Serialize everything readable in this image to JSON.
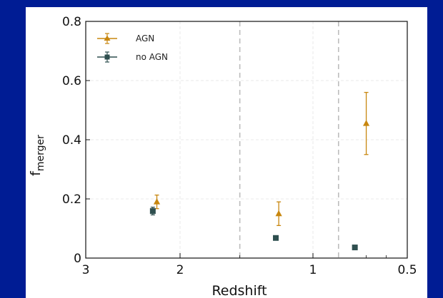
{
  "chart_data": {
    "type": "scatter",
    "xlabel": "Redshift",
    "ylabel_main": "f",
    "ylabel_sub": "merger",
    "x_scale": "log (1+z), reversed",
    "xlim": [
      3,
      0.5
    ],
    "ylim": [
      0,
      0.8
    ],
    "x_ticks": [
      {
        "value": 3,
        "label": "3"
      },
      {
        "value": 2,
        "label": "2"
      },
      {
        "value": 1,
        "label": "1"
      },
      {
        "value": 0.5,
        "label": "0.5"
      }
    ],
    "x_minor_ticks": [
      1.5,
      0.7,
      0.6
    ],
    "y_ticks": [
      {
        "value": 0,
        "label": "0"
      },
      {
        "value": 0.2,
        "label": "0.2"
      },
      {
        "value": 0.4,
        "label": "0.4"
      },
      {
        "value": 0.6,
        "label": "0.6"
      },
      {
        "value": 0.8,
        "label": "0.8"
      }
    ],
    "grid": true,
    "bin_boundaries": [
      1.5,
      0.85
    ],
    "legend_position": "top-left",
    "series": [
      {
        "name": "AGN",
        "marker": "triangle",
        "color": "#c8870f",
        "points": [
          {
            "x": 2.22,
            "y": 0.19,
            "err": 0.023
          },
          {
            "x": 1.22,
            "y": 0.15,
            "err": 0.04
          },
          {
            "x": 0.7,
            "y": 0.455,
            "err": 0.105
          }
        ]
      },
      {
        "name": "no AGN",
        "marker": "square",
        "color": "#2f4f4f",
        "points": [
          {
            "x": 2.26,
            "y": 0.159,
            "err": 0.013
          },
          {
            "x": 1.24,
            "y": 0.068,
            "err": 0.006
          },
          {
            "x": 0.76,
            "y": 0.036,
            "err": 0.003
          }
        ]
      }
    ]
  }
}
